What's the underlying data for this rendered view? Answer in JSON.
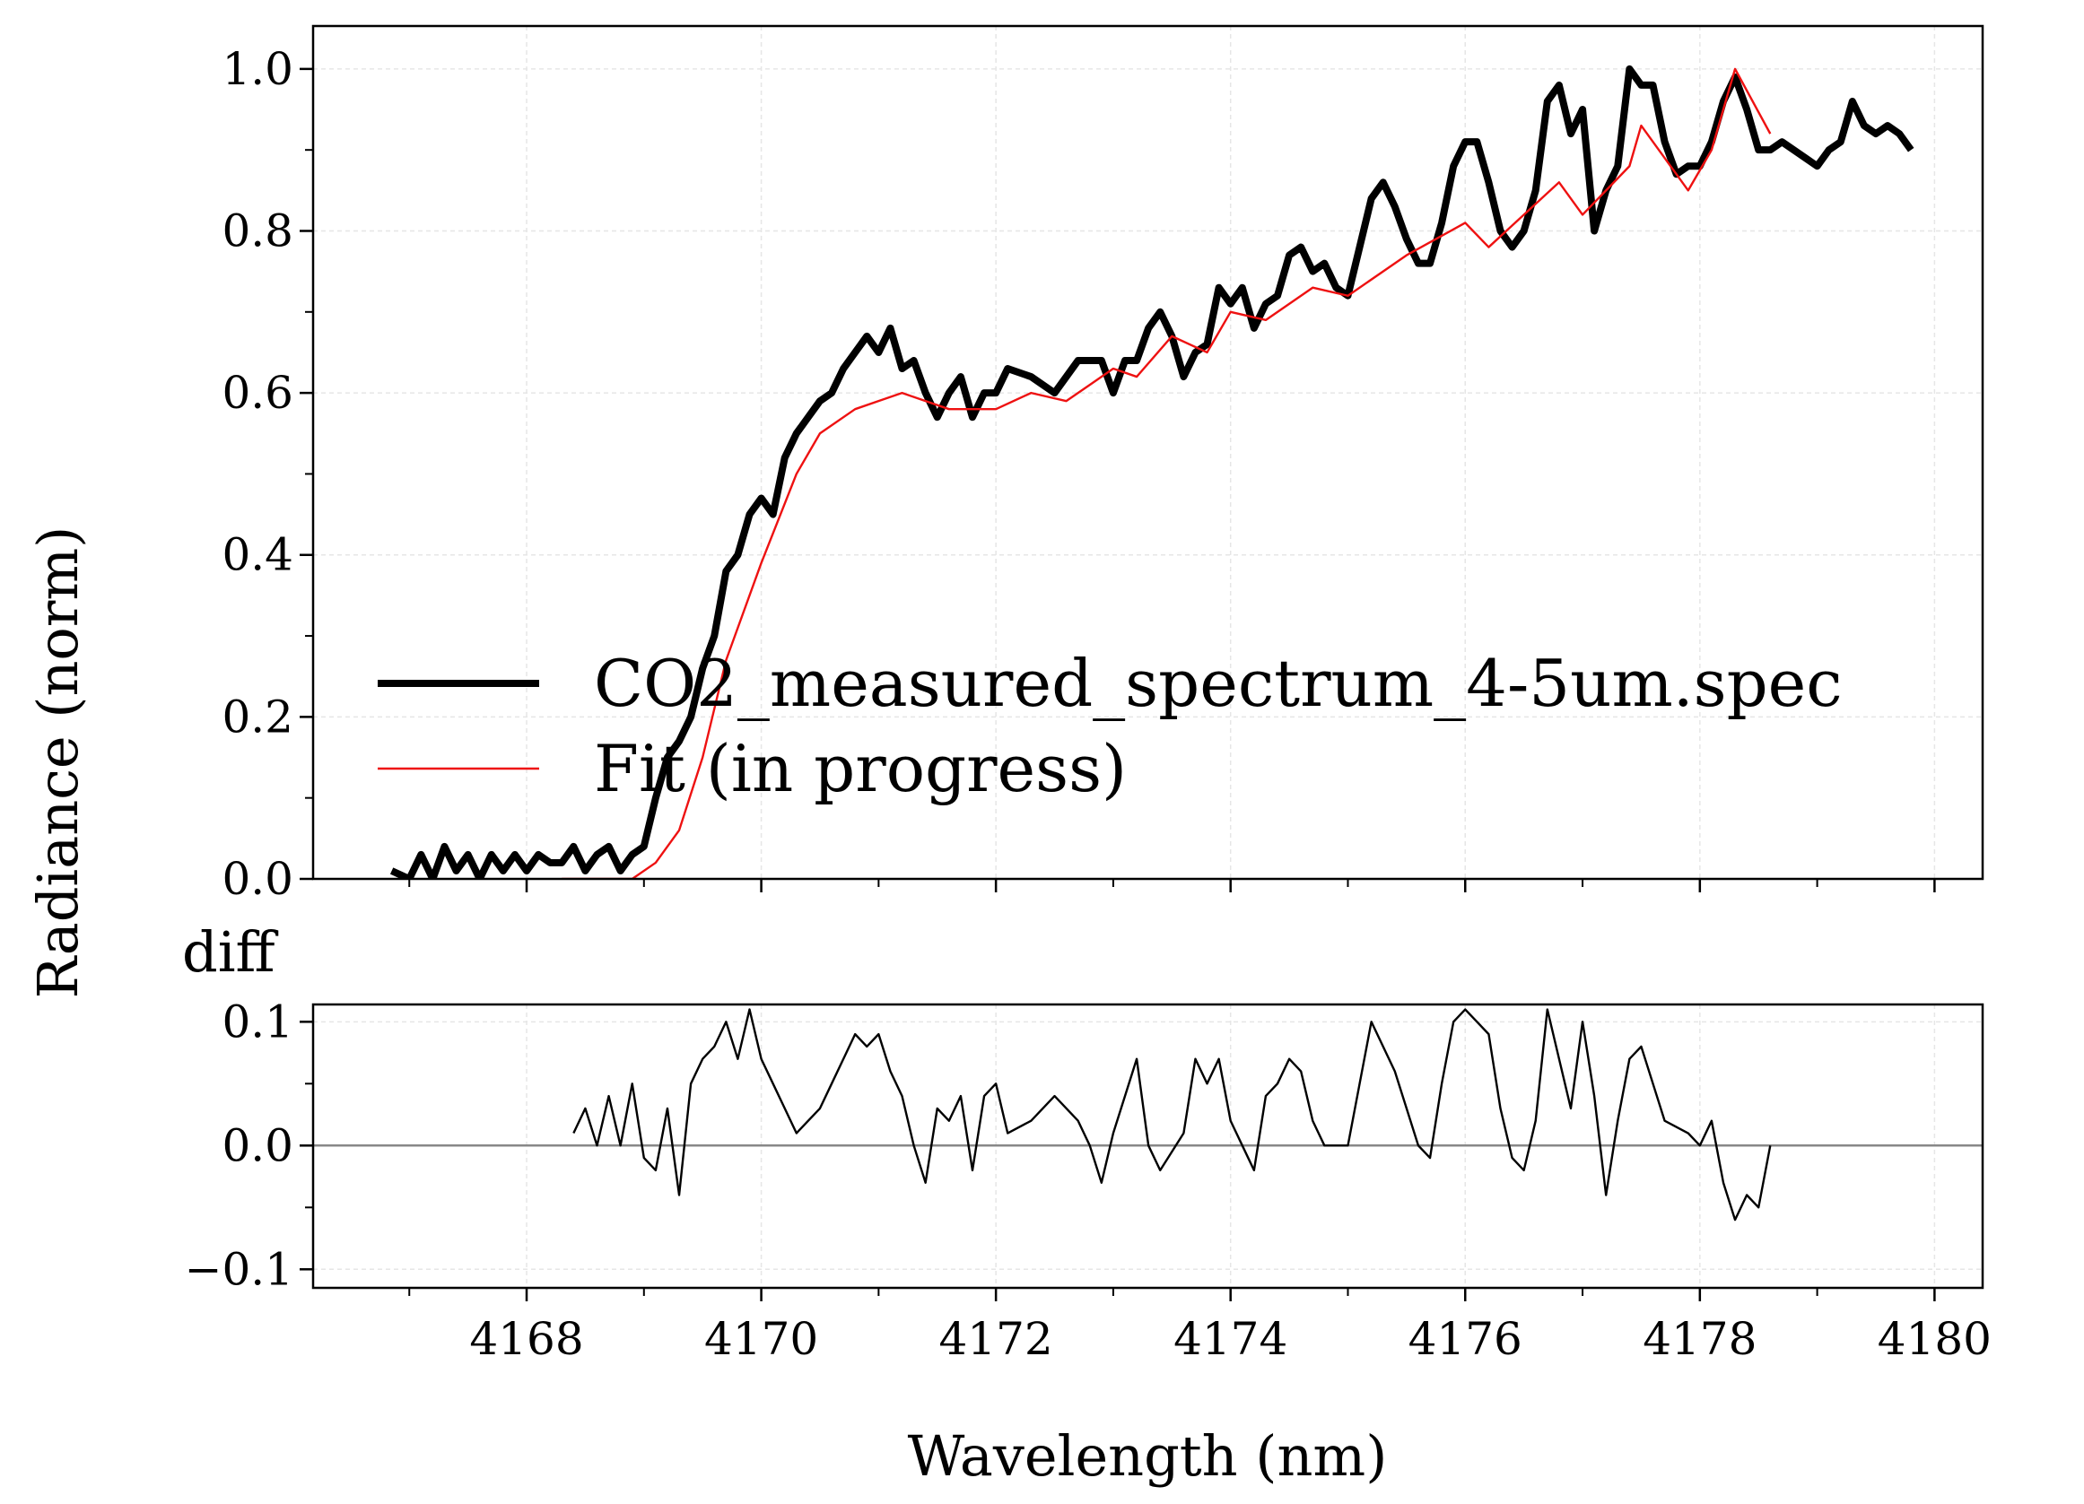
{
  "chart_data": [
    {
      "type": "line",
      "ylabel": "Radiance (norm)",
      "ylim": [
        0,
        1.053
      ],
      "yticks": [
        {
          "value": 0,
          "label": "0.0"
        },
        0.2,
        0.4,
        0.6,
        0.8,
        {
          "value": 1,
          "label": "1.0"
        }
      ],
      "grid": true,
      "legend": "lower left",
      "series": [
        {
          "name": "CO2_measured_spectrum_4-5um.spec",
          "color": "#000000",
          "x": [
            4166.85,
            4167.0,
            4167.1,
            4167.2,
            4167.3,
            4167.4,
            4167.5,
            4167.6,
            4167.7,
            4167.8,
            4167.9,
            4168.0,
            4168.1,
            4168.2,
            4168.3,
            4168.4,
            4168.5,
            4168.6,
            4168.7,
            4168.8,
            4168.9,
            4169.0,
            4169.1,
            4169.2,
            4169.3,
            4169.4,
            4169.5,
            4169.6,
            4169.7,
            4169.8,
            4169.9,
            4170.0,
            4170.1,
            4170.2,
            4170.3,
            4170.4,
            4170.5,
            4170.6,
            4170.7,
            4170.8,
            4170.9,
            4171.0,
            4171.1,
            4171.2,
            4171.3,
            4171.4,
            4171.5,
            4171.6,
            4171.7,
            4171.8,
            4171.9,
            4172.0,
            4172.1,
            4172.3,
            4172.5,
            4172.7,
            4172.9,
            4173.0,
            4173.1,
            4173.2,
            4173.3,
            4173.4,
            4173.5,
            4173.6,
            4173.7,
            4173.8,
            4173.9,
            4174.0,
            4174.1,
            4174.2,
            4174.3,
            4174.4,
            4174.5,
            4174.6,
            4174.7,
            4174.8,
            4174.9,
            4175.0,
            4175.1,
            4175.2,
            4175.3,
            4175.4,
            4175.5,
            4175.6,
            4175.7,
            4175.8,
            4175.9,
            4176.0,
            4176.1,
            4176.2,
            4176.3,
            4176.4,
            4176.5,
            4176.6,
            4176.7,
            4176.8,
            4176.9,
            4177.0,
            4177.1,
            4177.2,
            4177.3,
            4177.4,
            4177.5,
            4177.6,
            4177.7,
            4177.8,
            4177.9,
            4178.0,
            4178.1,
            4178.2,
            4178.3,
            4178.4,
            4178.5,
            4178.6,
            4178.7,
            4178.8,
            4178.9,
            4179.0,
            4179.1,
            4179.2,
            4179.3,
            4179.4,
            4179.5,
            4179.6,
            4179.7,
            4179.8
          ],
          "values": [
            0.01,
            0.0,
            0.03,
            0.0,
            0.04,
            0.01,
            0.03,
            0.0,
            0.03,
            0.01,
            0.03,
            0.01,
            0.03,
            0.02,
            0.02,
            0.04,
            0.01,
            0.03,
            0.04,
            0.01,
            0.03,
            0.04,
            0.1,
            0.15,
            0.17,
            0.2,
            0.26,
            0.3,
            0.38,
            0.4,
            0.45,
            0.47,
            0.45,
            0.52,
            0.55,
            0.57,
            0.59,
            0.6,
            0.63,
            0.65,
            0.67,
            0.65,
            0.68,
            0.63,
            0.64,
            0.6,
            0.57,
            0.6,
            0.62,
            0.57,
            0.6,
            0.6,
            0.63,
            0.62,
            0.6,
            0.64,
            0.64,
            0.6,
            0.64,
            0.64,
            0.68,
            0.7,
            0.67,
            0.62,
            0.65,
            0.66,
            0.73,
            0.71,
            0.73,
            0.68,
            0.71,
            0.72,
            0.77,
            0.78,
            0.75,
            0.76,
            0.73,
            0.72,
            0.78,
            0.84,
            0.86,
            0.83,
            0.79,
            0.76,
            0.76,
            0.81,
            0.88,
            0.91,
            0.91,
            0.86,
            0.8,
            0.78,
            0.8,
            0.85,
            0.96,
            0.98,
            0.92,
            0.95,
            0.8,
            0.85,
            0.88,
            1.0,
            0.98,
            0.98,
            0.91,
            0.87,
            0.88,
            0.88,
            0.91,
            0.96,
            0.99,
            0.95,
            0.9,
            0.9,
            0.91,
            0.9,
            0.89,
            0.88,
            0.9,
            0.91,
            0.96,
            0.93,
            0.92,
            0.93,
            0.92,
            0.9
          ]
        },
        {
          "name": "Fit (in progress)",
          "color": "#ee1111",
          "x": [
            4168.3,
            4168.9,
            4169.1,
            4169.3,
            4169.5,
            4169.7,
            4170.0,
            4170.3,
            4170.5,
            4170.8,
            4171.0,
            4171.2,
            4171.6,
            4172.0,
            4172.3,
            4172.6,
            4172.8,
            4173.0,
            4173.2,
            4173.5,
            4173.8,
            4174.0,
            4174.3,
            4174.7,
            4175.0,
            4175.5,
            4176.0,
            4176.2,
            4176.8,
            4177.0,
            4177.4,
            4177.5,
            4177.9,
            4178.1,
            4178.3,
            4178.6
          ],
          "values": [
            0.0,
            0.0,
            0.02,
            0.06,
            0.15,
            0.27,
            0.39,
            0.5,
            0.55,
            0.58,
            0.59,
            0.6,
            0.58,
            0.58,
            0.6,
            0.59,
            0.61,
            0.63,
            0.62,
            0.67,
            0.65,
            0.7,
            0.69,
            0.73,
            0.72,
            0.77,
            0.81,
            0.78,
            0.86,
            0.82,
            0.88,
            0.93,
            0.85,
            0.9,
            1.0,
            0.92
          ]
        }
      ]
    },
    {
      "type": "line",
      "title": "diff",
      "xlabel": "Wavelength (nm)",
      "xlim": [
        4166.18,
        4180.41
      ],
      "xticks": [
        4168,
        4170,
        4172,
        4174,
        4176,
        4178,
        4180
      ],
      "ylim": [
        -0.115,
        0.114
      ],
      "yticks": [
        {
          "value": -0.1,
          "label": "−0.1"
        },
        {
          "value": 0,
          "label": "0.0"
        },
        0.1
      ],
      "grid": true,
      "color": "#000000",
      "x": [
        4168.4,
        4168.5,
        4168.6,
        4168.7,
        4168.8,
        4168.9,
        4169.0,
        4169.1,
        4169.2,
        4169.3,
        4169.4,
        4169.5,
        4169.6,
        4169.7,
        4169.8,
        4169.9,
        4170.0,
        4170.1,
        4170.2,
        4170.3,
        4170.4,
        4170.5,
        4170.6,
        4170.7,
        4170.8,
        4170.9,
        4171.0,
        4171.1,
        4171.2,
        4171.3,
        4171.4,
        4171.5,
        4171.6,
        4171.7,
        4171.8,
        4171.9,
        4172.0,
        4172.1,
        4172.3,
        4172.5,
        4172.7,
        4172.8,
        4172.9,
        4173.0,
        4173.2,
        4173.3,
        4173.4,
        4173.6,
        4173.7,
        4173.8,
        4173.9,
        4174.0,
        4174.1,
        4174.2,
        4174.3,
        4174.4,
        4174.5,
        4174.6,
        4174.7,
        4174.8,
        4175.0,
        4175.1,
        4175.2,
        4175.4,
        4175.5,
        4175.6,
        4175.7,
        4175.8,
        4175.9,
        4176.0,
        4176.2,
        4176.3,
        4176.4,
        4176.5,
        4176.6,
        4176.7,
        4176.9,
        4177.0,
        4177.1,
        4177.2,
        4177.3,
        4177.4,
        4177.5,
        4177.6,
        4177.7,
        4177.9,
        4178.0,
        4178.1,
        4178.2,
        4178.3,
        4178.4,
        4178.5,
        4178.6
      ],
      "values": [
        0.01,
        0.03,
        0.0,
        0.04,
        0.0,
        0.05,
        -0.01,
        -0.02,
        0.03,
        -0.04,
        0.05,
        0.07,
        0.08,
        0.1,
        0.07,
        0.11,
        0.07,
        0.05,
        0.03,
        0.01,
        0.02,
        0.03,
        0.05,
        0.07,
        0.09,
        0.08,
        0.09,
        0.06,
        0.04,
        0.0,
        -0.03,
        0.03,
        0.02,
        0.04,
        -0.02,
        0.04,
        0.05,
        0.01,
        0.02,
        0.04,
        0.02,
        0.0,
        -0.03,
        0.01,
        0.07,
        0.0,
        -0.02,
        0.01,
        0.07,
        0.05,
        0.07,
        0.02,
        0.0,
        -0.02,
        0.04,
        0.05,
        0.07,
        0.06,
        0.02,
        0.0,
        0.0,
        0.05,
        0.1,
        0.06,
        0.03,
        0.0,
        -0.01,
        0.05,
        0.1,
        0.11,
        0.09,
        0.03,
        -0.01,
        -0.02,
        0.02,
        0.11,
        0.03,
        0.1,
        0.04,
        -0.04,
        0.02,
        0.07,
        0.08,
        0.05,
        0.02,
        0.01,
        0.0,
        0.02,
        -0.03,
        -0.06,
        -0.04,
        -0.05,
        0.0
      ]
    }
  ]
}
